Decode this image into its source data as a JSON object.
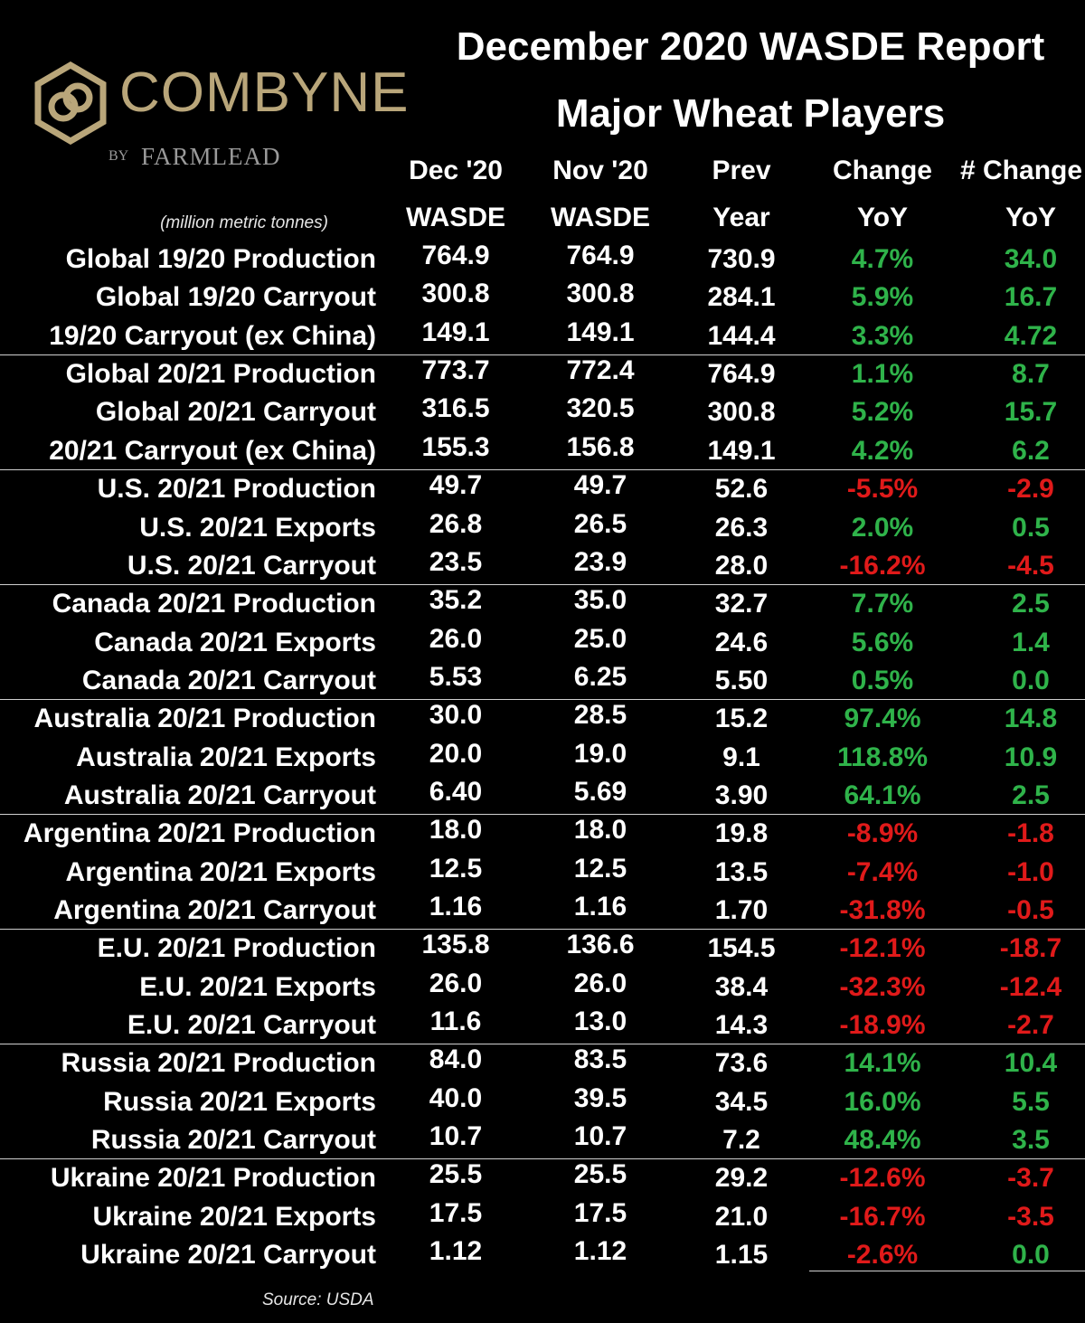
{
  "title": "December 2020 WASDE Report",
  "subtitle": "Major Wheat Players",
  "logo": {
    "brand": "COMBYNE",
    "by": "BY",
    "sub": "FARMLEAD",
    "brand_color": "#b9a67a"
  },
  "units": "(million metric tonnes)",
  "source": "Source: USDA",
  "colors": {
    "positive": "#2fb34a",
    "negative": "#e01a1a",
    "background": "#000000"
  },
  "chart_data": {
    "type": "table",
    "columns": [
      {
        "key": "dec",
        "line1": "Dec '20",
        "line2": "WASDE"
      },
      {
        "key": "nov",
        "line1": "Nov '20",
        "line2": "WASDE"
      },
      {
        "key": "prev",
        "line1": "Prev",
        "line2": "Year"
      },
      {
        "key": "pct",
        "line1": "Change",
        "line2": "YoY"
      },
      {
        "key": "chg",
        "line1": "# Change",
        "line2": "YoY"
      }
    ],
    "rows": [
      {
        "label": "Global 19/20 Production",
        "dec": "764.9",
        "nov": "764.9",
        "prev": "730.9",
        "pct": "4.7%",
        "chg": "34.0"
      },
      {
        "label": "Global 19/20 Carryout",
        "dec": "300.8",
        "nov": "300.8",
        "prev": "284.1",
        "pct": "5.9%",
        "chg": "16.7"
      },
      {
        "label": "19/20 Carryout (ex China)",
        "dec": "149.1",
        "nov": "149.1",
        "prev": "144.4",
        "pct": "3.3%",
        "chg": "4.72"
      },
      {
        "label": "Global 20/21 Production",
        "dec": "773.7",
        "nov": "772.4",
        "prev": "764.9",
        "pct": "1.1%",
        "chg": "8.7"
      },
      {
        "label": "Global 20/21 Carryout",
        "dec": "316.5",
        "nov": "320.5",
        "prev": "300.8",
        "pct": "5.2%",
        "chg": "15.7"
      },
      {
        "label": "20/21 Carryout (ex China)",
        "dec": "155.3",
        "nov": "156.8",
        "prev": "149.1",
        "pct": "4.2%",
        "chg": "6.2"
      },
      {
        "label": "U.S. 20/21 Production",
        "dec": "49.7",
        "nov": "49.7",
        "prev": "52.6",
        "pct": "-5.5%",
        "chg": "-2.9"
      },
      {
        "label": "U.S. 20/21 Exports",
        "dec": "26.8",
        "nov": "26.5",
        "prev": "26.3",
        "pct": "2.0%",
        "chg": "0.5"
      },
      {
        "label": "U.S. 20/21 Carryout",
        "dec": "23.5",
        "nov": "23.9",
        "prev": "28.0",
        "pct": "-16.2%",
        "chg": "-4.5"
      },
      {
        "label": "Canada 20/21 Production",
        "dec": "35.2",
        "nov": "35.0",
        "prev": "32.7",
        "pct": "7.7%",
        "chg": "2.5"
      },
      {
        "label": "Canada 20/21 Exports",
        "dec": "26.0",
        "nov": "25.0",
        "prev": "24.6",
        "pct": "5.6%",
        "chg": "1.4"
      },
      {
        "label": "Canada 20/21 Carryout",
        "dec": "5.53",
        "nov": "6.25",
        "prev": "5.50",
        "pct": "0.5%",
        "chg": "0.0"
      },
      {
        "label": "Australia 20/21 Production",
        "dec": "30.0",
        "nov": "28.5",
        "prev": "15.2",
        "pct": "97.4%",
        "chg": "14.8"
      },
      {
        "label": "Australia 20/21 Exports",
        "dec": "20.0",
        "nov": "19.0",
        "prev": "9.1",
        "pct": "118.8%",
        "chg": "10.9"
      },
      {
        "label": "Australia 20/21 Carryout",
        "dec": "6.40",
        "nov": "5.69",
        "prev": "3.90",
        "pct": "64.1%",
        "chg": "2.5"
      },
      {
        "label": "Argentina 20/21 Production",
        "dec": "18.0",
        "nov": "18.0",
        "prev": "19.8",
        "pct": "-8.9%",
        "chg": "-1.8"
      },
      {
        "label": "Argentina 20/21 Exports",
        "dec": "12.5",
        "nov": "12.5",
        "prev": "13.5",
        "pct": "-7.4%",
        "chg": "-1.0"
      },
      {
        "label": "Argentina 20/21 Carryout",
        "dec": "1.16",
        "nov": "1.16",
        "prev": "1.70",
        "pct": "-31.8%",
        "chg": "-0.5"
      },
      {
        "label": "E.U. 20/21 Production",
        "dec": "135.8",
        "nov": "136.6",
        "prev": "154.5",
        "pct": "-12.1%",
        "chg": "-18.7"
      },
      {
        "label": "E.U. 20/21 Exports",
        "dec": "26.0",
        "nov": "26.0",
        "prev": "38.4",
        "pct": "-32.3%",
        "chg": "-12.4"
      },
      {
        "label": "E.U. 20/21 Carryout",
        "dec": "11.6",
        "nov": "13.0",
        "prev": "14.3",
        "pct": "-18.9%",
        "chg": "-2.7"
      },
      {
        "label": "Russia 20/21 Production",
        "dec": "84.0",
        "nov": "83.5",
        "prev": "73.6",
        "pct": "14.1%",
        "chg": "10.4"
      },
      {
        "label": "Russia 20/21 Exports",
        "dec": "40.0",
        "nov": "39.5",
        "prev": "34.5",
        "pct": "16.0%",
        "chg": "5.5"
      },
      {
        "label": "Russia 20/21 Carryout",
        "dec": "10.7",
        "nov": "10.7",
        "prev": "7.2",
        "pct": "48.4%",
        "chg": "3.5"
      },
      {
        "label": "Ukraine 20/21 Production",
        "dec": "25.5",
        "nov": "25.5",
        "prev": "29.2",
        "pct": "-12.6%",
        "chg": "-3.7"
      },
      {
        "label": "Ukraine 20/21 Exports",
        "dec": "17.5",
        "nov": "17.5",
        "prev": "21.0",
        "pct": "-16.7%",
        "chg": "-3.5"
      },
      {
        "label": "Ukraine 20/21 Carryout",
        "dec": "1.12",
        "nov": "1.12",
        "prev": "1.15",
        "pct": "-2.6%",
        "chg": "0.0"
      }
    ]
  }
}
